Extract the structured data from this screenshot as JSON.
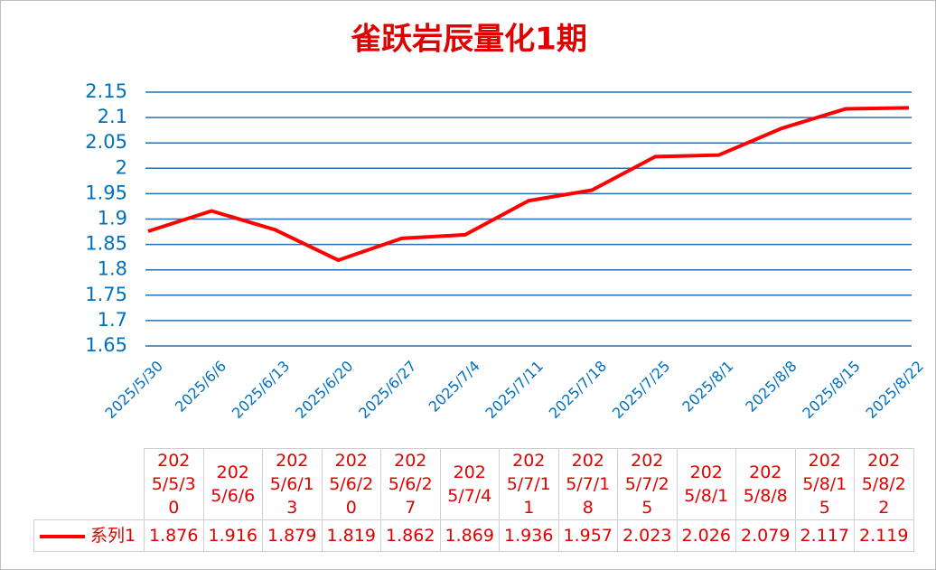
{
  "chart_data": {
    "type": "line",
    "title": "雀跃岩辰量化1期",
    "categories": [
      "2025/5/30",
      "2025/6/6",
      "2025/6/13",
      "2025/6/20",
      "2025/6/27",
      "2025/7/4",
      "2025/7/11",
      "2025/7/18",
      "2025/7/25",
      "2025/8/1",
      "2025/8/8",
      "2025/8/15",
      "2025/8/22"
    ],
    "series": [
      {
        "name": "系列1",
        "color": "#ff0000",
        "values": [
          1.876,
          1.916,
          1.879,
          1.819,
          1.862,
          1.869,
          1.936,
          1.957,
          2.023,
          2.026,
          2.079,
          2.117,
          2.119
        ]
      }
    ],
    "ylim": [
      1.65,
      2.15
    ],
    "yticks": [
      1.65,
      1.7,
      1.75,
      1.8,
      1.85,
      1.9,
      1.95,
      2,
      2.05,
      2.1,
      2.15
    ],
    "grid": true,
    "data_table": true
  }
}
